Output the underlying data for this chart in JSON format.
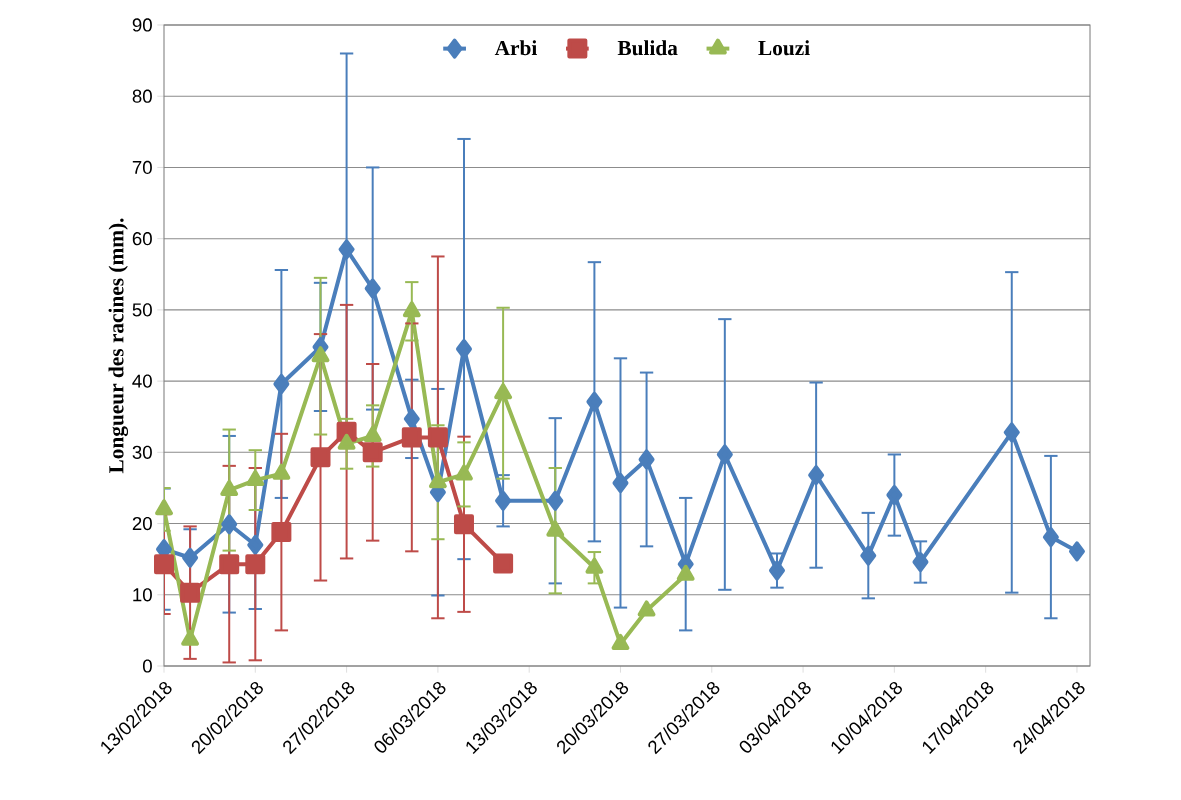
{
  "chart_data": {
    "type": "line",
    "ylabel": "Longueur des racines (mm).",
    "xlim": [
      "2018-02-13",
      "2018-04-25"
    ],
    "xticks": [
      {
        "value": "2018-02-13",
        "label": "13/02/2018"
      },
      {
        "value": "2018-02-20",
        "label": "20/02/2018"
      },
      {
        "value": "2018-02-27",
        "label": "27/02/2018"
      },
      {
        "value": "2018-03-06",
        "label": "06/03/2018"
      },
      {
        "value": "2018-03-13",
        "label": "13/03/2018"
      },
      {
        "value": "2018-03-20",
        "label": "20/03/2018"
      },
      {
        "value": "2018-03-27",
        "label": "27/03/2018"
      },
      {
        "value": "2018-04-03",
        "label": "03/04/2018"
      },
      {
        "value": "2018-04-10",
        "label": "10/04/2018"
      },
      {
        "value": "2018-04-17",
        "label": "17/04/2018"
      },
      {
        "value": "2018-04-24",
        "label": "24/04/2018"
      }
    ],
    "ylim": [
      0,
      90
    ],
    "yticks": [
      0,
      10,
      20,
      30,
      40,
      50,
      60,
      70,
      80,
      90
    ],
    "grid": "y",
    "legend": "top",
    "series": [
      {
        "name": "Arbi",
        "color": "#4a7ebb",
        "marker": "diamond",
        "x": [
          "2018-02-13",
          "2018-02-15",
          "2018-02-18",
          "2018-02-20",
          "2018-02-22",
          "2018-02-25",
          "2018-02-27",
          "2018-03-01",
          "2018-03-04",
          "2018-03-06",
          "2018-03-08",
          "2018-03-11",
          "2018-03-15",
          "2018-03-18",
          "2018-03-20",
          "2018-03-22",
          "2018-03-25",
          "2018-03-28",
          "2018-04-01",
          "2018-04-04",
          "2018-04-08",
          "2018-04-10",
          "2018-04-12",
          "2018-04-19",
          "2018-04-22",
          "2018-04-24"
        ],
        "values": [
          16.4,
          15.2,
          19.9,
          17.0,
          39.6,
          44.8,
          58.5,
          53.0,
          34.7,
          24.4,
          44.5,
          23.2,
          23.2,
          37.1,
          25.7,
          29.0,
          14.3,
          29.7,
          13.4,
          26.8,
          15.5,
          24.0,
          14.6,
          32.8,
          18.1,
          16.1
        ],
        "errors": [
          8.5,
          4,
          12.4,
          9,
          16,
          9,
          27.5,
          17,
          5.5,
          14.5,
          29.5,
          3.6,
          11.6,
          19.6,
          17.5,
          12.2,
          9.3,
          19,
          2.4,
          13,
          6,
          5.7,
          2.9,
          22.5,
          11.4,
          null
        ]
      },
      {
        "name": "Bulida",
        "color": "#be4b48",
        "marker": "square",
        "x": [
          "2018-02-13",
          "2018-02-15",
          "2018-02-18",
          "2018-02-20",
          "2018-02-22",
          "2018-02-25",
          "2018-02-27",
          "2018-03-01",
          "2018-03-04",
          "2018-03-06",
          "2018-03-08",
          "2018-03-11"
        ],
        "values": [
          14.3,
          10.3,
          14.3,
          14.3,
          18.8,
          29.3,
          32.9,
          30.0,
          32.1,
          32.1,
          19.9,
          14.4
        ],
        "errors": [
          7,
          9.3,
          13.8,
          13.5,
          13.8,
          17.3,
          17.8,
          12.4,
          16,
          25.4,
          12.3,
          null
        ]
      },
      {
        "name": "Louzi",
        "color": "#98b954",
        "marker": "triangle",
        "x": [
          "2018-02-13",
          "2018-02-15",
          "2018-02-18",
          "2018-02-20",
          "2018-02-22",
          "2018-02-25",
          "2018-02-27",
          "2018-03-01",
          "2018-03-04",
          "2018-03-06",
          "2018-03-08",
          "2018-03-11",
          "2018-03-15",
          "2018-03-18",
          "2018-03-20",
          "2018-03-22",
          "2018-03-25"
        ],
        "values": [
          22.0,
          3.7,
          24.7,
          26.1,
          27.0,
          43.5,
          31.2,
          32.3,
          49.8,
          25.8,
          26.9,
          38.3,
          19.0,
          13.8,
          3.1,
          7.8,
          12.8
        ],
        "errors": [
          3,
          null,
          8.5,
          4.2,
          null,
          11,
          3.5,
          4.3,
          4.1,
          8,
          4.5,
          12,
          8.8,
          2.2,
          null,
          null,
          null
        ]
      }
    ]
  }
}
